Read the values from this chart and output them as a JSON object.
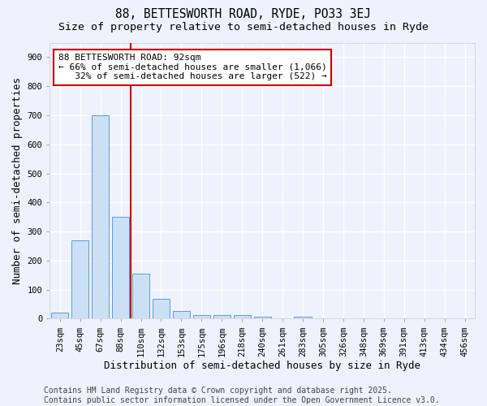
{
  "title_line1": "88, BETTESWORTH ROAD, RYDE, PO33 3EJ",
  "title_line2": "Size of property relative to semi-detached houses in Ryde",
  "xlabel": "Distribution of semi-detached houses by size in Ryde",
  "ylabel": "Number of semi-detached properties",
  "bar_labels": [
    "23sqm",
    "45sqm",
    "67sqm",
    "88sqm",
    "110sqm",
    "132sqm",
    "153sqm",
    "175sqm",
    "196sqm",
    "218sqm",
    "240sqm",
    "261sqm",
    "283sqm",
    "305sqm",
    "326sqm",
    "348sqm",
    "369sqm",
    "391sqm",
    "413sqm",
    "434sqm",
    "456sqm"
  ],
  "bar_values": [
    20,
    270,
    700,
    350,
    155,
    68,
    25,
    12,
    12,
    12,
    6,
    0,
    6,
    0,
    0,
    0,
    0,
    0,
    0,
    0,
    0
  ],
  "bar_color": "#cce0f5",
  "bar_edge_color": "#5b9bd5",
  "property_line_x": 3.5,
  "property_line_color": "#cc0000",
  "annotation_text": "88 BETTESWORTH ROAD: 92sqm\n← 66% of semi-detached houses are smaller (1,066)\n   32% of semi-detached houses are larger (522) →",
  "annotation_box_color": "#ffffff",
  "annotation_box_edge_color": "#cc0000",
  "footer_text": "Contains HM Land Registry data © Crown copyright and database right 2025.\nContains public sector information licensed under the Open Government Licence v3.0.",
  "ylim": [
    0,
    950
  ],
  "yticks": [
    0,
    100,
    200,
    300,
    400,
    500,
    600,
    700,
    800,
    900
  ],
  "background_color": "#eef2fc",
  "grid_color": "#ffffff",
  "title_fontsize": 10.5,
  "subtitle_fontsize": 9.5,
  "axis_label_fontsize": 9,
  "tick_fontsize": 7.5,
  "annotation_fontsize": 8,
  "footer_fontsize": 7
}
